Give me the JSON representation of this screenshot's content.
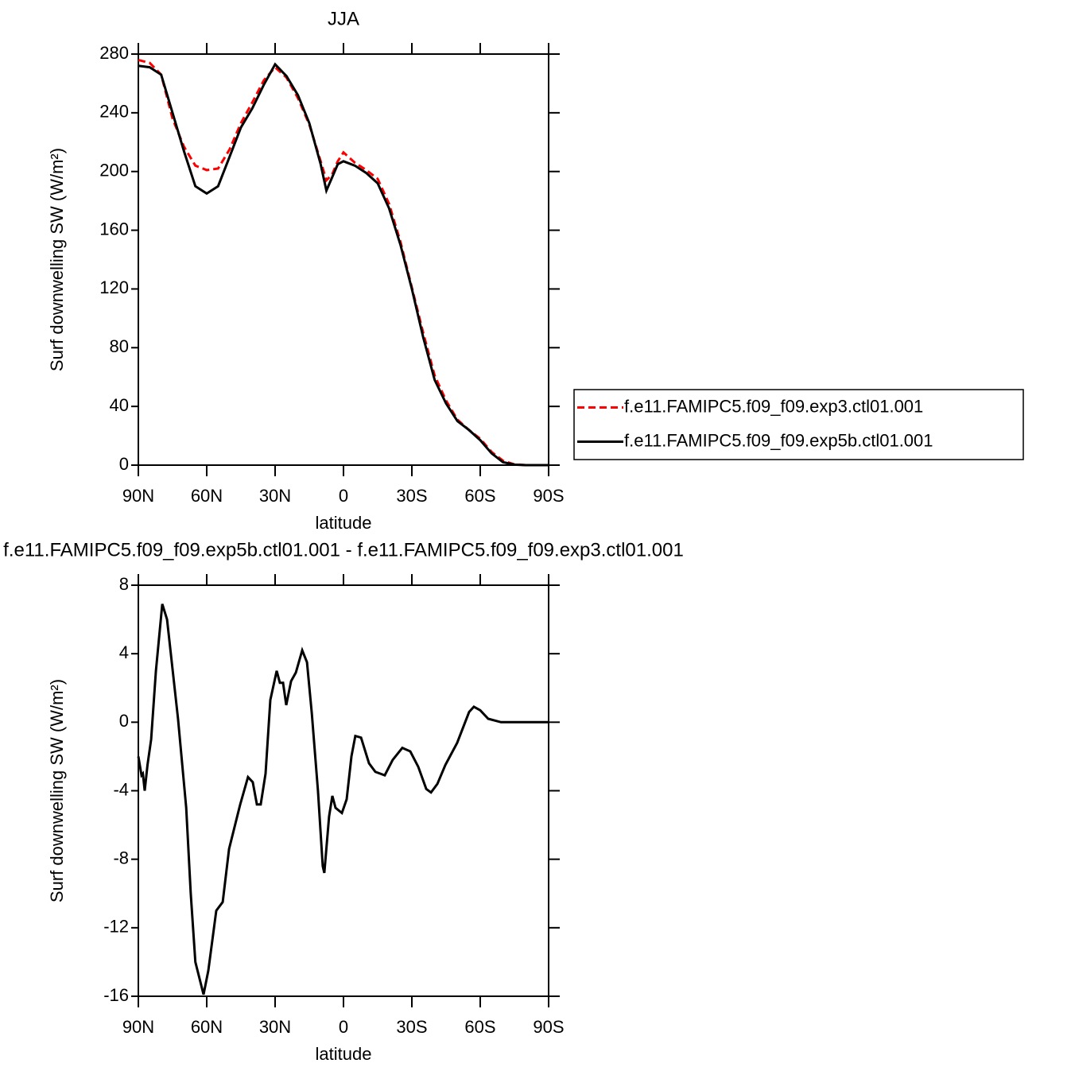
{
  "chart_data": [
    {
      "type": "line",
      "title": "JJA",
      "xlabel": "latitude",
      "ylabel": "Surf downwelling SW (W/m²)",
      "x": [
        90,
        85,
        80,
        75,
        70,
        65,
        60,
        55,
        50,
        45,
        40,
        35,
        30,
        25,
        20,
        15,
        10,
        7.5,
        5,
        2.5,
        0,
        -5,
        -10,
        -15,
        -20,
        -25,
        -30,
        -35,
        -40,
        -45,
        -50,
        -55,
        -60,
        -65,
        -70,
        -75,
        -80,
        -85,
        -90
      ],
      "series": [
        {
          "name": "f.e11.FAMIPC5.f09_f09.exp3.ctl01.001",
          "color": "#ff0000",
          "linestyle": "dashed",
          "values": [
            276,
            274,
            266,
            236,
            217,
            204,
            201,
            202,
            215,
            233,
            247,
            262,
            271,
            264,
            250,
            232,
            207,
            194,
            198,
            207,
            213,
            206,
            201,
            195,
            178,
            152,
            121,
            90,
            61,
            44,
            31,
            24,
            18,
            9,
            3,
            0.5,
            0,
            0,
            0
          ]
        },
        {
          "name": "f.e11.FAMIPC5.f09_f09.exp5b.ctl01.001",
          "color": "#000000",
          "linestyle": "solid",
          "values": [
            272,
            271,
            266,
            240,
            214,
            190,
            185,
            190,
            210,
            230,
            243,
            259,
            273,
            265,
            252,
            233,
            205,
            187,
            196,
            205,
            207,
            204,
            199,
            192,
            175,
            150,
            120,
            87,
            58,
            42,
            30,
            24,
            17,
            8,
            2,
            0.3,
            0,
            0,
            0
          ]
        }
      ],
      "xlim": [
        90,
        -90
      ],
      "xticks": [
        {
          "value": 90,
          "label": "90N"
        },
        {
          "value": 60,
          "label": "60N"
        },
        {
          "value": 30,
          "label": "30N"
        },
        0,
        {
          "value": -30,
          "label": "30S"
        },
        {
          "value": -60,
          "label": "60S"
        },
        {
          "value": -90,
          "label": "90S"
        }
      ],
      "ylim": [
        0,
        280
      ],
      "yticks": [
        0,
        40,
        80,
        120,
        160,
        200,
        240,
        280
      ],
      "legend": "outside-right"
    },
    {
      "type": "line",
      "title": "f.e11.FAMIPC5.f09_f09.exp5b.ctl01.001  -  f.e11.FAMIPC5.f09_f09.exp3.ctl01.001",
      "xlabel": "latitude",
      "ylabel": "Surf downwelling SW (W/m²)",
      "x": [
        90,
        88.6,
        88,
        87.2,
        86,
        84.4,
        82.3,
        79.5,
        77.4,
        72.6,
        69,
        67,
        65,
        61.4,
        59.3,
        55.8,
        53,
        50.2,
        45.3,
        41.9,
        39.8,
        38,
        36.3,
        34.2,
        32.1,
        29.3,
        27.9,
        26.5,
        25.1,
        23,
        20.9,
        18.1,
        16,
        13.9,
        11.2,
        9.1,
        8.4,
        6.3,
        4.9,
        3.5,
        0.7,
        -1.4,
        -3.5,
        -5.2,
        -7.7,
        -11.2,
        -14,
        -16.1,
        -18.1,
        -21.6,
        -25.8,
        -29.3,
        -32.8,
        -36.3,
        -38.4,
        -41.2,
        -44.7,
        -49.9,
        -55.1,
        -57.2,
        -60,
        -63.5,
        -69.1,
        -90
      ],
      "series": [
        {
          "color": "#000000",
          "linestyle": "solid",
          "values": [
            -2,
            -3.1,
            -3,
            -4,
            -2.5,
            -1,
            3,
            6.9,
            6,
            0.2,
            -5,
            -10,
            -14,
            -15.9,
            -14.5,
            -11,
            -10.5,
            -7.4,
            -4.8,
            -3.2,
            -3.5,
            -4.8,
            -4.8,
            -3,
            1.3,
            3,
            2.3,
            2.3,
            1,
            2.4,
            2.9,
            4.2,
            3.5,
            0.5,
            -4,
            -8.4,
            -8.8,
            -5.5,
            -4.3,
            -5,
            -5.3,
            -4.5,
            -2,
            -0.8,
            -0.9,
            -2.4,
            -2.9,
            -3,
            -3.1,
            -2.2,
            -1.5,
            -1.7,
            -2.6,
            -3.9,
            -4.1,
            -3.6,
            -2.5,
            -1.2,
            0.6,
            0.9,
            0.7,
            0.2,
            0,
            0
          ]
        }
      ],
      "xlim": [
        90,
        -90
      ],
      "xticks": [
        {
          "value": 90,
          "label": "90N"
        },
        {
          "value": 60,
          "label": "60N"
        },
        {
          "value": 30,
          "label": "30N"
        },
        0,
        {
          "value": -30,
          "label": "30S"
        },
        {
          "value": -60,
          "label": "60S"
        },
        {
          "value": -90,
          "label": "90S"
        }
      ],
      "ylim": [
        -16,
        8
      ],
      "yticks": [
        -16,
        -12,
        -8,
        -4,
        0,
        4,
        8
      ]
    }
  ]
}
